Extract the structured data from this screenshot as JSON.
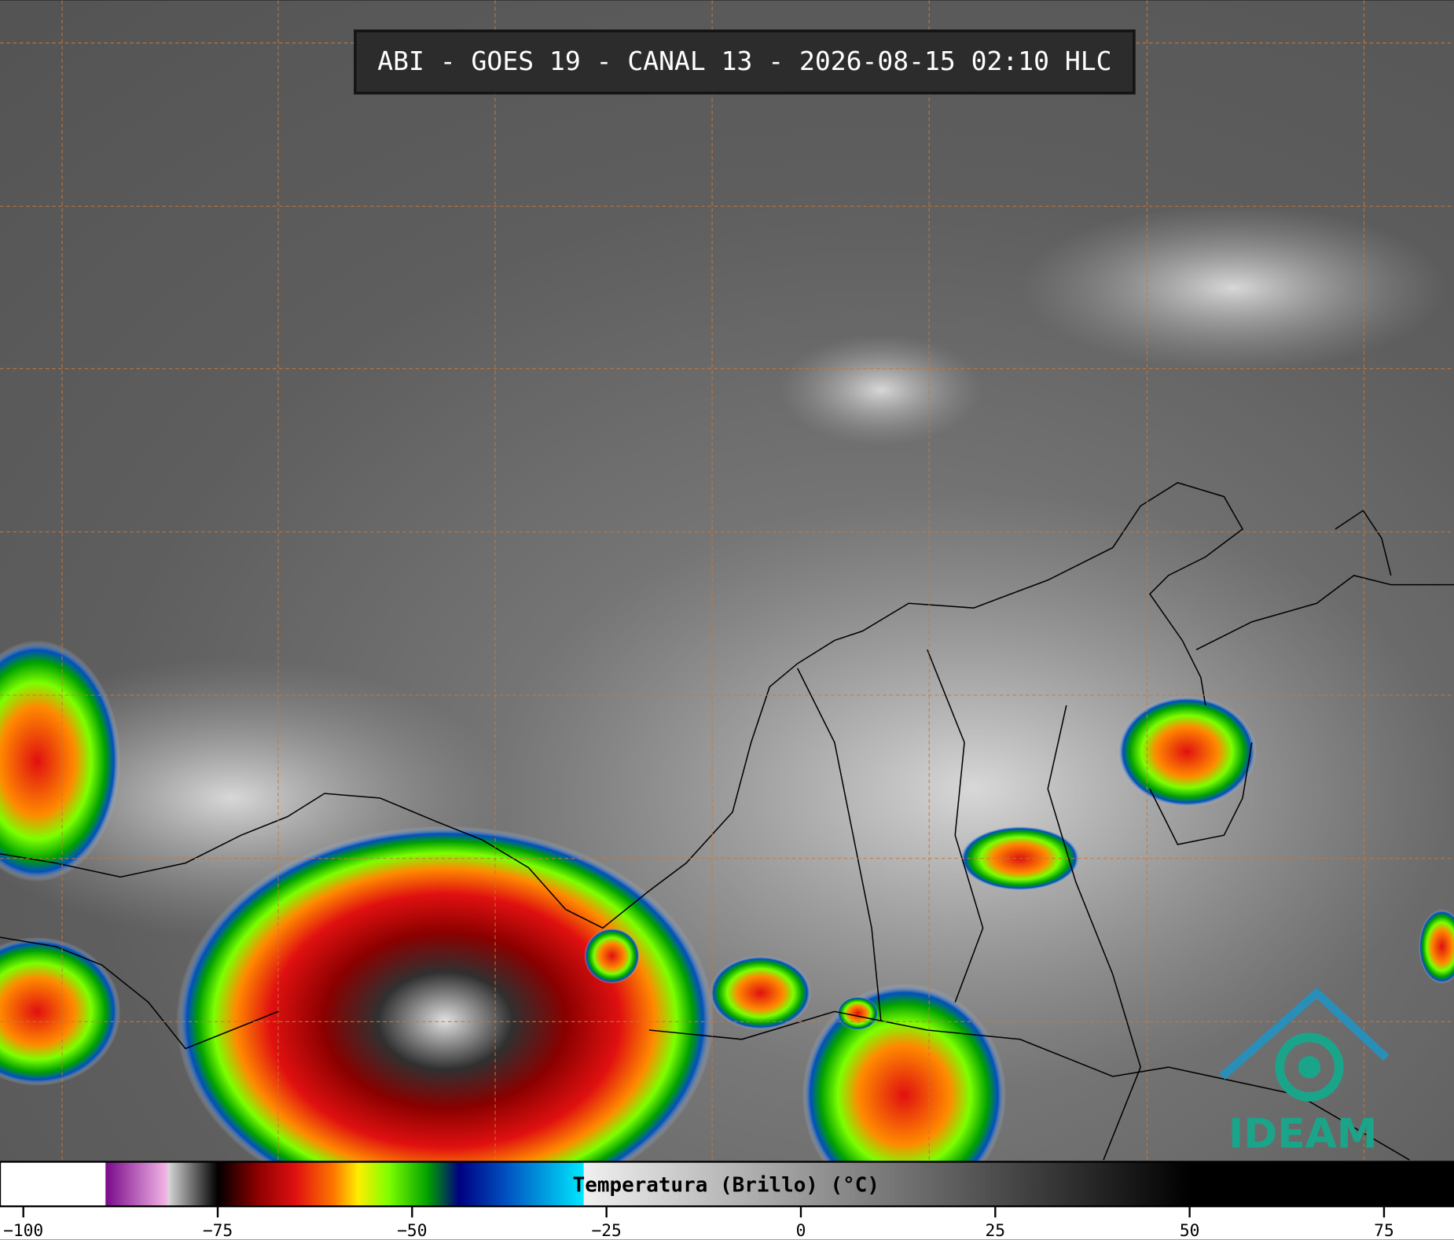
{
  "title": "ABI - GOES 19 - CANAL 13 - 2026-08-15 02:10 HLC",
  "logo": "IDEAM",
  "colorbar": {
    "label": "Temperatura (Brillo) (°C)",
    "xlim": [
      -103,
      84
    ],
    "xticks": [
      {
        "value": -100,
        "label": "−100"
      },
      {
        "value": -75,
        "label": "−75"
      },
      {
        "value": -50,
        "label": "−50"
      },
      {
        "value": -25,
        "label": "−25"
      },
      0,
      25,
      50,
      75
    ],
    "stops": [
      {
        "value": -103,
        "color": "#ffffff"
      },
      {
        "value": -89.5,
        "color": "#ffffff"
      },
      {
        "value": -89.4,
        "color": "#7a0a8a"
      },
      {
        "value": -81.5,
        "color": "#f4b8e8"
      },
      {
        "value": -81.4,
        "color": "#d8d8d8"
      },
      {
        "value": -76,
        "color": "#202020"
      },
      {
        "value": -75,
        "color": "#000000"
      },
      {
        "value": -70,
        "color": "#8a0000"
      },
      {
        "value": -65,
        "color": "#e01010"
      },
      {
        "value": -60,
        "color": "#ff7a00"
      },
      {
        "value": -57,
        "color": "#ffee00"
      },
      {
        "value": -53,
        "color": "#7cff00"
      },
      {
        "value": -48,
        "color": "#00a000"
      },
      {
        "value": -44,
        "color": "#000080"
      },
      {
        "value": -38,
        "color": "#0050c0"
      },
      {
        "value": -28,
        "color": "#00e8ff"
      },
      {
        "value": -27.9,
        "color": "#f0f0f0"
      },
      {
        "value": 50,
        "color": "#000000"
      },
      {
        "value": 84,
        "color": "#000000"
      }
    ]
  }
}
